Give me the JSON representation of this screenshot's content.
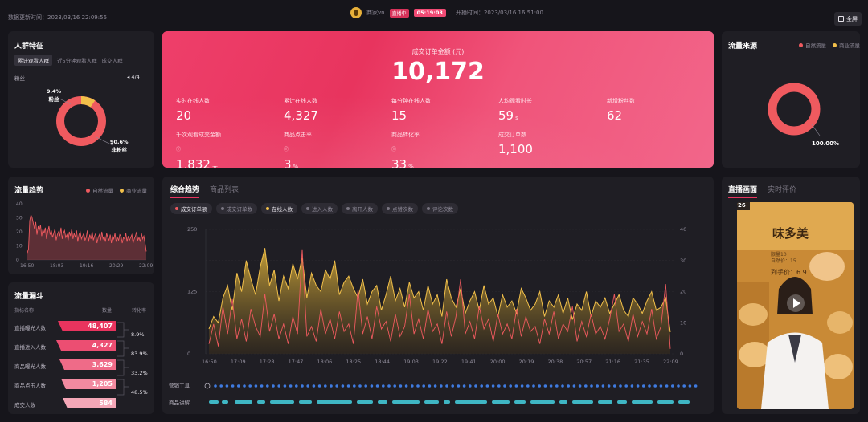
{
  "header": {
    "data_time": "数据更新时间：2023/03/16 22:09:56",
    "streamer": "商家vn",
    "live_tag": "直播中",
    "live_duration": "05:19:03",
    "start_time": "开播时间：2023/03/16 16:51:00",
    "fullscreen_label": "全屏"
  },
  "crowd": {
    "title": "人群特征",
    "tabs": [
      "累计观看人群",
      "近5分钟观看人群",
      "成交人群"
    ],
    "subtitle": "粉丝",
    "pager": "4/4",
    "fans_pct": "9.4%",
    "fans_label": "粉丝",
    "nonfans_pct": "90.6%",
    "nonfans_label": "非粉丝",
    "colors": {
      "fans": "#f2c04a",
      "nonfans": "#ef5a5f"
    },
    "chart_data": {
      "type": "pie",
      "categories": [
        "粉丝",
        "非粉丝"
      ],
      "values": [
        9.4,
        90.6
      ]
    }
  },
  "sales": {
    "title": "成交订单金额 (元)",
    "total": "10,172",
    "metrics": [
      {
        "label": "实时在线人数",
        "value": "20",
        "unit": ""
      },
      {
        "label": "累计在线人数",
        "value": "4,327",
        "unit": ""
      },
      {
        "label": "每分钟在线人数",
        "value": "15",
        "unit": ""
      },
      {
        "label": "人均观看时长",
        "value": "59",
        "unit": "s"
      },
      {
        "label": "新增粉丝数",
        "value": "62",
        "unit": ""
      },
      {
        "label": "千次观看成交金额",
        "value": "1,832",
        "unit": "元"
      },
      {
        "label": "商品点击率",
        "value": "3",
        "unit": "%"
      },
      {
        "label": "商品转化率",
        "value": "33",
        "unit": "%"
      },
      {
        "label": "成交订单数",
        "value": "1,100",
        "unit": ""
      }
    ]
  },
  "source": {
    "title": "流量来源",
    "legend": [
      "自然流量",
      "商业流量"
    ],
    "pct": "100.00%",
    "colors": {
      "natural": "#ef5a5f",
      "paid": "#f2c04a"
    },
    "chart_data": {
      "type": "pie",
      "categories": [
        "自然流量",
        "商业流量"
      ],
      "values": [
        100,
        0
      ]
    }
  },
  "traffic": {
    "title": "流量趋势",
    "legend": [
      "自然流量",
      "商业流量"
    ],
    "y_ticks": [
      "40",
      "30",
      "20",
      "10",
      "0"
    ],
    "x_ticks": [
      "16:50",
      "18:03",
      "19:16",
      "20:29",
      "22:09"
    ],
    "chart_data": {
      "type": "area",
      "ylim": [
        0,
        40
      ],
      "series": [
        {
          "name": "自然流量",
          "values": [
            5,
            8,
            28,
            32,
            30,
            26,
            22,
            27,
            18,
            24,
            21,
            25,
            17,
            22,
            19,
            23,
            15,
            20,
            24,
            18,
            21,
            16,
            19,
            22,
            14,
            18,
            20,
            17,
            23,
            15,
            19,
            21,
            16,
            18,
            14,
            20,
            17,
            22,
            15,
            19,
            16,
            21,
            13,
            18,
            20,
            15,
            17,
            19,
            14,
            16,
            21,
            13,
            18,
            15,
            20,
            14,
            17,
            19,
            12,
            16,
            18,
            14,
            20,
            15,
            17,
            13,
            19,
            16,
            14,
            18,
            12,
            17,
            15,
            19,
            13,
            16,
            14,
            18,
            17,
            12,
            16,
            15,
            19,
            13,
            17,
            14,
            16,
            18,
            12,
            15,
            17,
            20,
            14,
            16,
            13,
            19,
            15,
            17,
            12,
            6
          ]
        },
        {
          "name": "商业流量",
          "values": []
        }
      ]
    }
  },
  "funnel": {
    "title": "流量漏斗",
    "headers": [
      "指标名称",
      "数量",
      "转化率"
    ],
    "rows": [
      {
        "label": "直播曝光人数",
        "value": "48,407"
      },
      {
        "label": "直播进入人数",
        "value": "4,327"
      },
      {
        "label": "商品曝光人数",
        "value": "3,629"
      },
      {
        "label": "商品点击人数",
        "value": "1,205"
      },
      {
        "label": "成交人数",
        "value": "584"
      }
    ],
    "rates": [
      "8.9%",
      "83.9%",
      "33.2%",
      "48.5%"
    ],
    "colors": [
      "#e8345e",
      "#ec4e72",
      "#ef6b88",
      "#f28aa0",
      "#f4a7b7"
    ]
  },
  "trend": {
    "tabs": [
      "综合趋势",
      "商品列表"
    ],
    "pills": [
      {
        "label": "成交订单额",
        "color": "#ef5a5f",
        "on": true
      },
      {
        "label": "成交订单数",
        "color": "#7a7682",
        "on": false
      },
      {
        "label": "在线人数",
        "color": "#f2c04a",
        "on": true
      },
      {
        "label": "进入人数",
        "color": "#7a7682",
        "on": false
      },
      {
        "label": "离开人数",
        "color": "#7a7682",
        "on": false
      },
      {
        "label": "点赞次数",
        "color": "#7a7682",
        "on": false
      },
      {
        "label": "评论次数",
        "color": "#7a7682",
        "on": false
      }
    ],
    "y_left": [
      "250",
      "125",
      "0"
    ],
    "y_right": [
      "40",
      "30",
      "20",
      "10",
      "0"
    ],
    "x_ticks": [
      "16:50",
      "17:09",
      "17:28",
      "17:47",
      "18:06",
      "18:25",
      "18:44",
      "19:03",
      "19:22",
      "19:41",
      "20:00",
      "20:19",
      "20:38",
      "20:57",
      "21:16",
      "21:35",
      "22:09"
    ],
    "row_labels": [
      "营销工具",
      "商品讲解"
    ],
    "chart_data": {
      "type": "line",
      "series": [
        {
          "name": "在线人数",
          "axis": "right",
          "values": [
            8,
            12,
            10,
            18,
            22,
            14,
            26,
            20,
            30,
            24,
            19,
            28,
            34,
            22,
            27,
            17,
            25,
            21,
            29,
            24,
            31,
            18,
            26,
            22,
            20,
            27,
            24,
            30,
            19,
            23,
            25,
            21,
            18,
            24,
            16,
            20,
            22,
            14,
            19,
            25,
            17,
            21,
            15,
            23,
            18,
            20,
            14,
            22,
            16,
            19,
            12,
            24,
            18,
            15,
            21,
            13,
            17,
            20,
            14,
            22,
            16,
            18,
            12,
            19,
            15,
            17,
            13,
            21,
            18,
            14,
            16,
            20,
            12,
            17,
            15,
            19,
            13,
            18,
            11,
            16,
            14,
            20,
            12,
            17,
            15,
            18,
            13,
            16,
            19,
            14,
            12,
            18,
            16,
            13,
            17,
            20,
            14,
            15,
            18,
            7
          ]
        },
        {
          "name": "成交订单额",
          "axis": "left",
          "values": [
            20,
            60,
            15,
            95,
            40,
            110,
            30,
            70,
            25,
            90,
            55,
            35,
            120,
            45,
            80,
            30,
            60,
            20,
            75,
            40,
            210,
            35,
            55,
            25,
            90,
            40,
            70,
            30,
            85,
            45,
            60,
            20,
            130,
            40,
            75,
            30,
            95,
            50,
            65,
            25,
            80,
            35,
            55,
            120,
            40,
            70,
            30,
            90,
            45,
            60,
            20,
            85,
            35,
            75,
            150,
            40,
            65,
            30,
            95,
            50,
            70,
            25,
            80,
            40,
            60,
            30,
            90,
            35,
            75,
            45,
            55,
            20,
            70,
            40,
            85,
            30,
            60,
            45,
            95,
            25,
            65,
            35,
            80,
            40,
            55,
            30,
            70,
            120,
            45,
            60,
            25,
            80,
            35,
            65,
            40,
            90,
            30,
            55,
            140,
            10
          ]
        }
      ]
    }
  },
  "live_view": {
    "tabs": [
      "直播画面",
      "实时评价"
    ],
    "shop_text": "味多美",
    "counter": "26",
    "price_text": "到手价：6.9",
    "sub_label": "限量10",
    "sub_label2": "自然价：15"
  }
}
